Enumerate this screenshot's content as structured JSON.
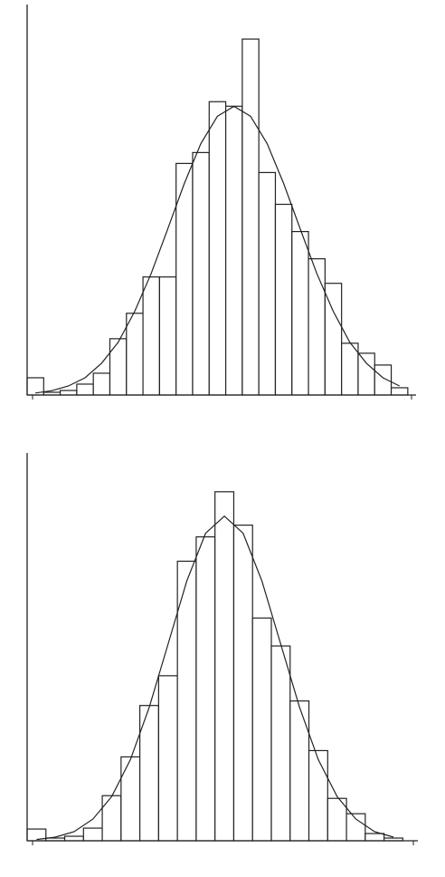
{
  "chart_data": [
    {
      "type": "histogram",
      "bins": [
        0,
        1,
        2,
        3,
        4,
        5,
        6,
        7,
        8,
        9,
        10,
        11,
        12,
        13,
        14,
        15,
        16,
        17,
        18,
        19,
        20,
        21,
        22,
        23
      ],
      "counts": [
        19,
        3,
        5,
        12,
        24,
        62,
        90,
        130,
        130,
        255,
        267,
        323,
        318,
        392,
        245,
        210,
        180,
        150,
        123,
        57,
        46,
        33,
        8
      ],
      "color": "#ffffff",
      "xlim": [
        0,
        23.5
      ],
      "ylim": [
        0,
        430
      ],
      "fit": {
        "x": [
          0.5,
          1.5,
          2.5,
          3.5,
          4.5,
          5.5,
          6.5,
          7.5,
          8.5,
          9.5,
          10.5,
          11.5,
          12.5,
          13.5,
          14.5,
          15.5,
          16.5,
          17.5,
          18.5,
          19.5,
          20.5,
          21.5,
          22.5
        ],
        "values": [
          2.2,
          4.8,
          10,
          19,
          35,
          58,
          92,
          134,
          183,
          233,
          277,
          307,
          318,
          307,
          277,
          233,
          183,
          134,
          92,
          58,
          35,
          19,
          10
        ]
      }
    },
    {
      "type": "histogram",
      "bins": [
        0,
        1,
        2,
        3,
        4,
        5,
        6,
        7,
        8,
        9,
        10,
        11,
        12,
        13,
        14,
        15,
        16,
        17,
        18,
        19,
        20
      ],
      "counts": [
        13,
        3,
        5,
        14,
        50,
        93,
        150,
        183,
        310,
        337,
        387,
        350,
        247,
        216,
        155,
        100,
        47,
        30,
        8,
        3
      ],
      "color": "#ffffff",
      "xlim": [
        0,
        20.8
      ],
      "ylim": [
        0,
        430
      ],
      "fit": {
        "x": [
          0.5,
          1.5,
          2.5,
          3.5,
          4.5,
          5.5,
          6.5,
          7.5,
          8.5,
          9.5,
          10.5,
          11.5,
          12.5,
          13.5,
          14.5,
          15.5,
          16.5,
          17.5,
          18.5,
          19.5
        ],
        "values": [
          1.4,
          4,
          10,
          24,
          49,
          90,
          148,
          218,
          288,
          341,
          360,
          341,
          288,
          218,
          148,
          90,
          49,
          24,
          10,
          4
        ]
      }
    }
  ]
}
